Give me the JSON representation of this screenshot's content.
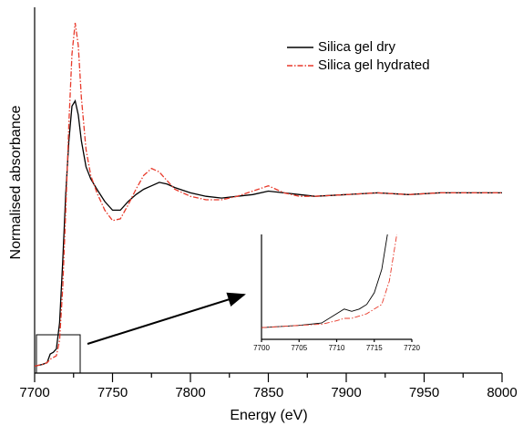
{
  "chart_data": [
    {
      "type": "line",
      "x_label": "Energy (eV)",
      "y_label": "Normalised absorbance",
      "x": [
        7700,
        7705,
        7708,
        7710,
        7712,
        7714,
        7716,
        7718,
        7720,
        7722,
        7724,
        7726,
        7728,
        7730,
        7733,
        7736,
        7740,
        7745,
        7750,
        7755,
        7760,
        7765,
        7770,
        7775,
        7780,
        7785,
        7790,
        7800,
        7810,
        7820,
        7830,
        7840,
        7850,
        7860,
        7870,
        7880,
        7900,
        7920,
        7940,
        7960,
        7980,
        8000
      ],
      "series": [
        {
          "name": "Silica gel dry",
          "color": "#000000",
          "values": [
            0,
            0.01,
            0.02,
            0.07,
            0.08,
            0.1,
            0.25,
            0.6,
            1.0,
            1.3,
            1.5,
            1.53,
            1.45,
            1.3,
            1.15,
            1.08,
            1.02,
            0.95,
            0.9,
            0.9,
            0.95,
            0.99,
            1.02,
            1.04,
            1.06,
            1.05,
            1.03,
            1.0,
            0.98,
            0.97,
            0.98,
            0.99,
            1.01,
            1.0,
            0.99,
            0.98,
            0.99,
            1.0,
            0.99,
            1.0,
            1.0,
            1.0
          ]
        },
        {
          "name": "Silica gel hydrated",
          "color": "#e8392a",
          "values": [
            0,
            0.01,
            0.02,
            0.04,
            0.05,
            0.06,
            0.15,
            0.45,
            0.9,
            1.4,
            1.8,
            1.98,
            1.85,
            1.55,
            1.25,
            1.1,
            1.0,
            0.9,
            0.84,
            0.85,
            0.93,
            1.02,
            1.1,
            1.14,
            1.12,
            1.07,
            1.02,
            0.98,
            0.96,
            0.96,
            0.98,
            1.01,
            1.04,
            1.0,
            0.98,
            0.98,
            0.99,
            1.0,
            0.99,
            1.0,
            1.0,
            1.0
          ]
        }
      ],
      "xlim": [
        7700,
        8000
      ],
      "xticks": [
        7700,
        7750,
        7800,
        7850,
        7900,
        7950,
        8000
      ],
      "ylim": [
        -0.04,
        2.07
      ],
      "legend": "upper right"
    },
    {
      "type": "line",
      "x": [
        7700,
        7705,
        7708,
        7710,
        7711,
        7712,
        7713,
        7714,
        7715,
        7716,
        7717,
        7718
      ],
      "series": [
        {
          "color": "#000000",
          "values": [
            0,
            0.01,
            0.02,
            0.06,
            0.08,
            0.07,
            0.08,
            0.1,
            0.15,
            0.25,
            0.45,
            null
          ]
        },
        {
          "color": "#e8392a",
          "values": [
            0,
            0.01,
            0.015,
            0.03,
            0.04,
            0.04,
            0.05,
            0.06,
            0.08,
            0.1,
            0.2,
            0.4
          ]
        }
      ],
      "xlim": [
        7700,
        7720
      ],
      "xticks": [
        7700,
        7705,
        7710,
        7715,
        7720
      ],
      "ylim": [
        -0.05,
        0.4
      ]
    }
  ]
}
